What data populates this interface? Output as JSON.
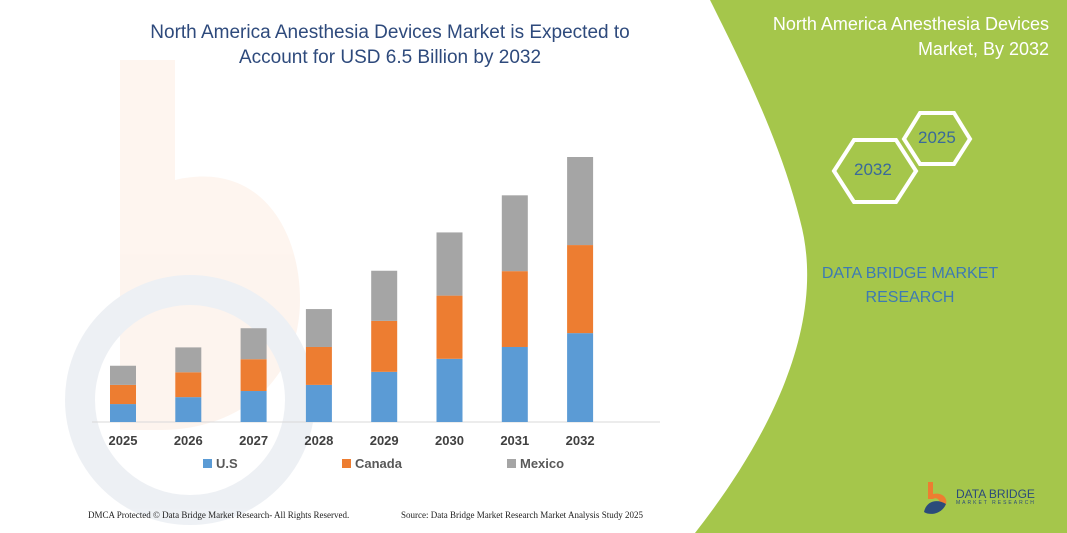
{
  "title": "North America Anesthesia Devices Market is Expected to Account for USD 6.5 Billion by 2032",
  "side_panel": {
    "title": "North America Anesthesia Devices Market, By 2032",
    "hex_years": [
      "2032",
      "2025"
    ],
    "brand": "DATA BRIDGE MARKET RESEARCH",
    "panel_color": "#a5c64b"
  },
  "footer": {
    "copyright": "DMCA Protected © Data Bridge Market Research-  All Rights Reserved.",
    "source": "Source: Data Bridge Market Research  Market Analysis Study 2025",
    "logo_text": "DATA BRIDGE",
    "logo_sub": "MARKET RESEARCH"
  },
  "chart_data": {
    "type": "bar",
    "stacked": true,
    "categories": [
      "2025",
      "2026",
      "2027",
      "2028",
      "2029",
      "2030",
      "2031",
      "2032"
    ],
    "series": [
      {
        "name": "U.S",
        "color": "#5b9bd5",
        "values": [
          0.44,
          0.61,
          0.76,
          0.91,
          1.23,
          1.55,
          1.84,
          2.18
        ]
      },
      {
        "name": "Canada",
        "color": "#ed7d31",
        "values": [
          0.47,
          0.61,
          0.78,
          0.93,
          1.25,
          1.55,
          1.86,
          2.16
        ]
      },
      {
        "name": "Mexico",
        "color": "#a5a5a5",
        "values": [
          0.47,
          0.61,
          0.76,
          0.93,
          1.23,
          1.55,
          1.86,
          2.16
        ]
      }
    ],
    "ylim": [
      0,
      6.5
    ],
    "grid": false,
    "legend": "bottom"
  }
}
